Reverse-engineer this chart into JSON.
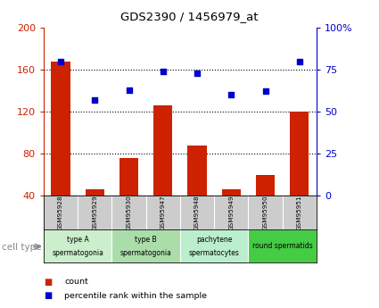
{
  "title": "GDS2390 / 1456979_at",
  "samples": [
    "GSM95928",
    "GSM95929",
    "GSM95930",
    "GSM95947",
    "GSM95948",
    "GSM95949",
    "GSM95950",
    "GSM95951"
  ],
  "counts": [
    168,
    46,
    76,
    126,
    88,
    46,
    60,
    120
  ],
  "percentiles": [
    80,
    57,
    63,
    74,
    73,
    60,
    62,
    80
  ],
  "ylim_left": [
    40,
    200
  ],
  "ylim_right": [
    0,
    100
  ],
  "yticks_left": [
    40,
    80,
    120,
    160,
    200
  ],
  "yticks_right": [
    0,
    25,
    50,
    75,
    100
  ],
  "ytick_labels_right": [
    "0",
    "25",
    "50",
    "75",
    "100%"
  ],
  "bar_color": "#cc2200",
  "scatter_color": "#0000cc",
  "cell_types": [
    {
      "label": "type A\nspermatogonia",
      "color": "#cceecc",
      "start": 0,
      "end": 2
    },
    {
      "label": "type B\nspermatogonia",
      "color": "#aaddaa",
      "start": 2,
      "end": 4
    },
    {
      "label": "pachytene\nspermatocytes",
      "color": "#bbeecc",
      "start": 4,
      "end": 6
    },
    {
      "label": "round spermatids",
      "color": "#44cc44",
      "start": 6,
      "end": 8
    }
  ],
  "legend_items": [
    {
      "label": "count",
      "color": "#cc2200"
    },
    {
      "label": "percentile rank within the sample",
      "color": "#0000cc"
    }
  ],
  "xlabel_cell_type": "cell type",
  "left_axis_color": "#cc2200",
  "right_axis_color": "#0000cc",
  "sample_box_color": "#cccccc",
  "bg_color": "#ffffff"
}
